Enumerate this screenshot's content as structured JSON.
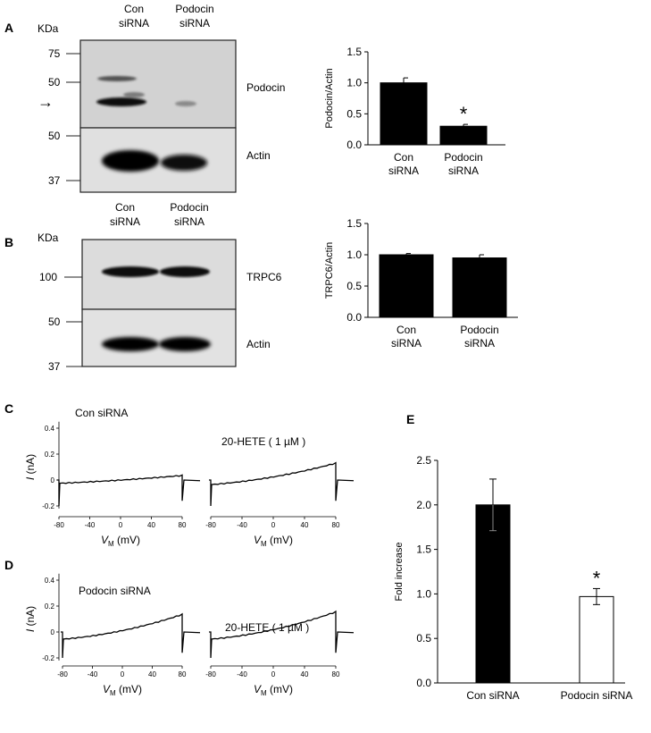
{
  "panel_labels": {
    "A": "A",
    "B": "B",
    "C": "C",
    "D": "D",
    "E": "E"
  },
  "blot_A": {
    "kda_label": "KDa",
    "markers": [
      "75",
      "50",
      "50",
      "37"
    ],
    "lanes": [
      [
        "Con",
        "siRNA"
      ],
      [
        "Podocin",
        "siRNA"
      ]
    ],
    "band_labels": [
      "Podocin",
      "Actin"
    ],
    "arrow": "→"
  },
  "blot_B": {
    "kda_label": "KDa",
    "markers": [
      "100",
      "50",
      "37"
    ],
    "lanes": [
      [
        "Con",
        "siRNA"
      ],
      [
        "Podocin",
        "siRNA"
      ]
    ],
    "band_labels": [
      "TRPC6",
      "Actin"
    ]
  },
  "traces": {
    "C": {
      "label": "Con siRNA",
      "drug_label": "20-HETE ( 1 µM )"
    },
    "D": {
      "label": "Podocin siRNA",
      "drug_label": "20-HETE ( 1 µM )"
    },
    "y_ticks": [
      "0.4",
      "0.2",
      "0",
      "-0.2"
    ],
    "x_ticks": [
      "-80",
      "-40",
      "0",
      "40",
      "80"
    ],
    "ylabel_italic": "I",
    "ylabel_rest": " (nA)",
    "xlabel_italic": "V",
    "xlabel_sub": "M",
    "xlabel_rest": " (mV)"
  },
  "chart_data": [
    {
      "type": "bar",
      "panel": "A",
      "categories": [
        [
          "Con",
          "siRNA"
        ],
        [
          "Podocin",
          "siRNA"
        ]
      ],
      "values": [
        1.0,
        0.3
      ],
      "errors": [
        0.08,
        0.03
      ],
      "significance": [
        "",
        "*"
      ],
      "ylabel": "Podocin/Actin",
      "ylim": [
        0,
        1.5
      ],
      "yticks": [
        "0.0",
        "0.5",
        "1.0",
        "1.5"
      ],
      "colors": [
        "#000000",
        "#000000"
      ]
    },
    {
      "type": "bar",
      "panel": "B",
      "categories": [
        [
          "Con",
          "siRNA"
        ],
        [
          "Podocin",
          "siRNA"
        ]
      ],
      "values": [
        1.0,
        0.95
      ],
      "errors": [
        0.02,
        0.05
      ],
      "significance": [
        "",
        ""
      ],
      "ylabel": "TRPC6/Actin",
      "ylim": [
        0,
        1.5
      ],
      "yticks": [
        "0.0",
        "0.5",
        "1.0",
        "1.5"
      ],
      "colors": [
        "#000000",
        "#000000"
      ]
    },
    {
      "type": "bar",
      "panel": "E",
      "categories": [
        [
          "Con siRNA"
        ],
        [
          "Podocin siRNA"
        ]
      ],
      "values": [
        2.0,
        0.97
      ],
      "errors": [
        0.29,
        0.09
      ],
      "significance": [
        "",
        "*"
      ],
      "ylabel": "Fold increase",
      "ylim": [
        0,
        2.5
      ],
      "yticks": [
        "0.0",
        "0.5",
        "1.0",
        "1.5",
        "2.0",
        "2.5"
      ],
      "colors": [
        "#000000",
        "#ffffff"
      ]
    }
  ]
}
